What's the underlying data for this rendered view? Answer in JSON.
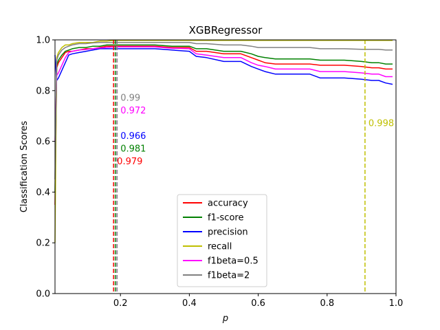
{
  "chart_data": {
    "type": "line",
    "title": "XGBRegressor",
    "xlabel": "p",
    "ylabel": "Classification Scores",
    "xlim": [
      0.01,
      1.0
    ],
    "ylim": [
      0.0,
      1.0
    ],
    "xticks": [
      "0.2",
      "0.4",
      "0.6",
      "0.8",
      "1.0"
    ],
    "yticks": [
      "0.0",
      "0.2",
      "0.4",
      "0.6",
      "0.8",
      "1.0"
    ],
    "grid": false,
    "legend_position": "lower-center",
    "series": [
      {
        "name": "accuracy",
        "color": "#ff0000",
        "x": [
          0.01,
          0.015,
          0.02,
          0.03,
          0.04,
          0.05,
          0.06,
          0.08,
          0.1,
          0.12,
          0.14,
          0.16,
          0.18,
          0.2,
          0.25,
          0.3,
          0.35,
          0.4,
          0.42,
          0.45,
          0.5,
          0.55,
          0.58,
          0.6,
          0.62,
          0.65,
          0.7,
          0.75,
          0.78,
          0.8,
          0.85,
          0.9,
          0.93,
          0.95,
          0.97,
          0.99
        ],
        "values": [
          0.35,
          0.89,
          0.91,
          0.93,
          0.95,
          0.955,
          0.955,
          0.96,
          0.965,
          0.965,
          0.97,
          0.975,
          0.975,
          0.975,
          0.975,
          0.975,
          0.97,
          0.97,
          0.955,
          0.955,
          0.945,
          0.945,
          0.93,
          0.92,
          0.91,
          0.905,
          0.905,
          0.905,
          0.9,
          0.9,
          0.9,
          0.895,
          0.89,
          0.89,
          0.885,
          0.885
        ]
      },
      {
        "name": "f1-score",
        "color": "#008000",
        "x": [
          0.01,
          0.015,
          0.02,
          0.03,
          0.04,
          0.05,
          0.06,
          0.08,
          0.1,
          0.12,
          0.14,
          0.16,
          0.18,
          0.2,
          0.25,
          0.3,
          0.35,
          0.4,
          0.42,
          0.45,
          0.5,
          0.55,
          0.58,
          0.6,
          0.62,
          0.65,
          0.7,
          0.75,
          0.78,
          0.8,
          0.85,
          0.9,
          0.93,
          0.95,
          0.97,
          0.99
        ],
        "values": [
          0.4,
          0.9,
          0.92,
          0.94,
          0.955,
          0.96,
          0.965,
          0.97,
          0.97,
          0.975,
          0.975,
          0.98,
          0.98,
          0.98,
          0.98,
          0.98,
          0.975,
          0.975,
          0.965,
          0.965,
          0.955,
          0.955,
          0.945,
          0.935,
          0.93,
          0.925,
          0.925,
          0.925,
          0.92,
          0.92,
          0.92,
          0.915,
          0.91,
          0.91,
          0.905,
          0.905
        ]
      },
      {
        "name": "precision",
        "color": "#0000ff",
        "x": [
          0.01,
          0.015,
          0.02,
          0.03,
          0.04,
          0.05,
          0.06,
          0.08,
          0.1,
          0.12,
          0.14,
          0.16,
          0.18,
          0.2,
          0.25,
          0.3,
          0.35,
          0.4,
          0.42,
          0.45,
          0.5,
          0.55,
          0.58,
          0.6,
          0.62,
          0.65,
          0.7,
          0.75,
          0.78,
          0.8,
          0.85,
          0.9,
          0.93,
          0.95,
          0.97,
          0.99
        ],
        "values": [
          0.94,
          0.84,
          0.85,
          0.88,
          0.91,
          0.94,
          0.945,
          0.95,
          0.955,
          0.96,
          0.965,
          0.965,
          0.965,
          0.965,
          0.965,
          0.965,
          0.96,
          0.955,
          0.935,
          0.93,
          0.915,
          0.915,
          0.895,
          0.885,
          0.875,
          0.865,
          0.865,
          0.865,
          0.85,
          0.85,
          0.85,
          0.845,
          0.84,
          0.84,
          0.83,
          0.825
        ]
      },
      {
        "name": "recall",
        "color": "#bfbf00",
        "x": [
          0.01,
          0.015,
          0.02,
          0.03,
          0.04,
          0.05,
          0.06,
          0.08,
          0.1,
          0.12,
          0.14,
          0.16,
          0.18,
          0.2,
          0.25,
          0.3,
          0.35,
          0.4,
          0.45,
          0.5,
          0.6,
          0.7,
          0.8,
          0.9,
          0.99
        ],
        "values": [
          0.2,
          0.93,
          0.95,
          0.97,
          0.98,
          0.98,
          0.985,
          0.99,
          0.99,
          0.99,
          0.995,
          0.995,
          0.998,
          0.998,
          0.998,
          0.998,
          0.998,
          0.998,
          0.998,
          0.998,
          0.998,
          0.998,
          0.998,
          0.998,
          0.998
        ]
      },
      {
        "name": "f1beta=0.5",
        "color": "#ff00ff",
        "x": [
          0.01,
          0.015,
          0.02,
          0.03,
          0.04,
          0.05,
          0.06,
          0.08,
          0.1,
          0.12,
          0.14,
          0.16,
          0.18,
          0.2,
          0.25,
          0.3,
          0.35,
          0.4,
          0.42,
          0.45,
          0.5,
          0.55,
          0.58,
          0.6,
          0.62,
          0.65,
          0.7,
          0.75,
          0.78,
          0.8,
          0.85,
          0.9,
          0.93,
          0.95,
          0.97,
          0.99
        ],
        "values": [
          0.6,
          0.86,
          0.87,
          0.9,
          0.93,
          0.95,
          0.955,
          0.96,
          0.962,
          0.965,
          0.968,
          0.97,
          0.972,
          0.972,
          0.972,
          0.972,
          0.967,
          0.965,
          0.945,
          0.94,
          0.93,
          0.93,
          0.91,
          0.9,
          0.895,
          0.885,
          0.885,
          0.885,
          0.875,
          0.875,
          0.875,
          0.87,
          0.865,
          0.865,
          0.855,
          0.855
        ]
      },
      {
        "name": "f1beta=2",
        "color": "#808080",
        "x": [
          0.01,
          0.015,
          0.02,
          0.03,
          0.04,
          0.05,
          0.06,
          0.08,
          0.1,
          0.12,
          0.14,
          0.16,
          0.18,
          0.2,
          0.25,
          0.3,
          0.35,
          0.4,
          0.42,
          0.45,
          0.5,
          0.55,
          0.58,
          0.6,
          0.62,
          0.65,
          0.7,
          0.75,
          0.78,
          0.8,
          0.85,
          0.9,
          0.93,
          0.95,
          0.97,
          0.99
        ],
        "values": [
          0.45,
          0.92,
          0.94,
          0.96,
          0.97,
          0.975,
          0.98,
          0.985,
          0.985,
          0.988,
          0.99,
          0.99,
          0.99,
          0.99,
          0.99,
          0.99,
          0.99,
          0.99,
          0.985,
          0.985,
          0.98,
          0.98,
          0.975,
          0.97,
          0.97,
          0.97,
          0.97,
          0.97,
          0.965,
          0.965,
          0.965,
          0.963,
          0.963,
          0.963,
          0.96,
          0.96
        ]
      }
    ],
    "vlines": [
      {
        "series": "accuracy",
        "x": 0.18,
        "color": "#ff0000"
      },
      {
        "series": "f1-score",
        "x": 0.185,
        "color": "#008000"
      },
      {
        "series": "precision",
        "x": 0.19,
        "color": "#0000ff"
      },
      {
        "series": "f1beta=0.5",
        "x": 0.19,
        "color": "#ff00ff"
      },
      {
        "series": "f1beta=2",
        "x": 0.19,
        "color": "#808080"
      },
      {
        "series": "recall",
        "x": 0.91,
        "color": "#bfbf00"
      }
    ],
    "annotations": [
      {
        "text": "0.99",
        "x": 0.2,
        "y": 0.76,
        "color": "#808080"
      },
      {
        "text": "0.972",
        "x": 0.2,
        "y": 0.71,
        "color": "#ff00ff"
      },
      {
        "text": "0.966",
        "x": 0.2,
        "y": 0.61,
        "color": "#0000ff"
      },
      {
        "text": "0.981",
        "x": 0.2,
        "y": 0.56,
        "color": "#008000"
      },
      {
        "text": "0.979",
        "x": 0.19,
        "y": 0.51,
        "color": "#ff0000"
      },
      {
        "text": "0.998",
        "x": 0.92,
        "y": 0.66,
        "color": "#bfbf00"
      }
    ]
  }
}
